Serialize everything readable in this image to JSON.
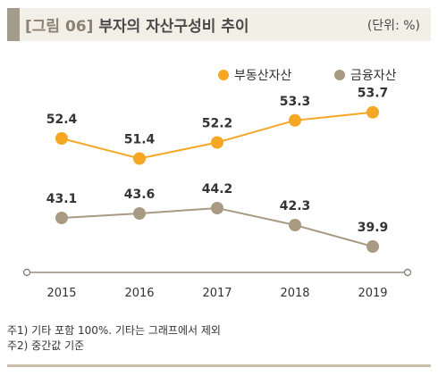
{
  "header": {
    "label": "[그림 06]",
    "title": "부자의 자산구성비 추이",
    "unit": "(단위: %)"
  },
  "notes": [
    "주1) 기타 포함 100%. 기타는 그래프에서 제외",
    "주2) 중간값 기준"
  ],
  "colors": {
    "realestate": "#f5a623",
    "financial": "#a89a83",
    "axis": "#7d7466",
    "header_bg": "#f2efe6",
    "rule": "#c9bfa9"
  },
  "chart_data": {
    "type": "line",
    "title": "부자의 자산구성비 추이",
    "unit": "(단위: %)",
    "x": [
      "2015",
      "2016",
      "2017",
      "2018",
      "2019"
    ],
    "series": [
      {
        "name": "부동산자산",
        "color": "#f5a623",
        "values": [
          52.4,
          51.4,
          52.2,
          53.3,
          53.7
        ]
      },
      {
        "name": "금융자산",
        "color": "#a89a83",
        "values": [
          43.1,
          43.6,
          44.2,
          42.3,
          39.9
        ]
      }
    ],
    "legend_position": "top-right",
    "grid": false
  }
}
